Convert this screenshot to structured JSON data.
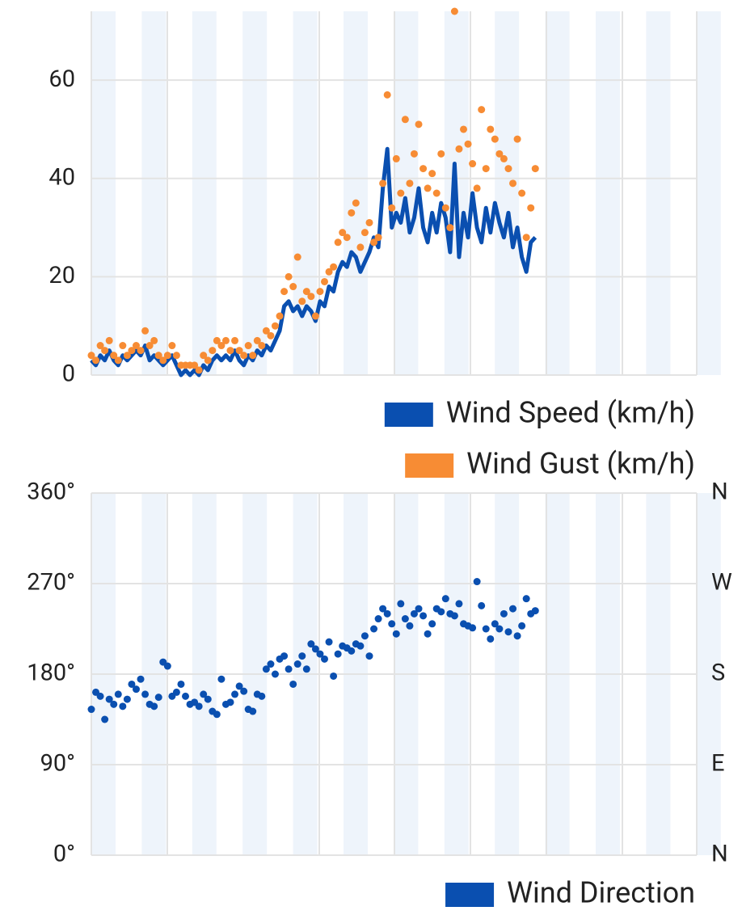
{
  "chart_data": [
    {
      "type": "line",
      "ylim": [
        0,
        74
      ],
      "yticks": [
        0,
        20,
        40,
        60
      ],
      "grid": true,
      "series": [
        {
          "name": "Wind Speed (km/h)",
          "type": "line",
          "color": "#0a4fb0",
          "values": [
            3,
            2,
            4,
            3,
            5,
            3,
            2,
            4,
            3,
            4,
            5,
            4,
            6,
            3,
            4,
            3,
            2,
            3,
            4,
            2,
            0,
            1,
            0,
            1,
            0,
            2,
            1,
            3,
            4,
            3,
            4,
            3,
            5,
            3,
            2,
            4,
            3,
            5,
            4,
            6,
            5,
            7,
            9,
            14,
            15,
            13,
            14,
            12,
            14,
            13,
            11,
            15,
            14,
            18,
            17,
            21,
            23,
            22,
            25,
            24,
            21,
            23,
            25,
            28,
            26,
            38,
            46,
            30,
            33,
            31,
            36,
            29,
            32,
            38,
            30,
            27,
            33,
            29,
            35,
            32,
            25,
            43,
            24,
            33,
            28,
            37,
            30,
            27,
            34,
            29,
            35,
            31,
            28,
            33,
            26,
            30,
            24,
            21,
            27,
            28
          ]
        },
        {
          "name": "Wind Gust (km/h)",
          "type": "scatter",
          "color": "#f78c34",
          "values": [
            4,
            3,
            6,
            5,
            7,
            4,
            3,
            6,
            4,
            5,
            6,
            5,
            9,
            6,
            7,
            4,
            3,
            4,
            6,
            4,
            2,
            2,
            2,
            2,
            1,
            4,
            3,
            5,
            7,
            6,
            7,
            5,
            7,
            5,
            4,
            6,
            4,
            7,
            6,
            9,
            8,
            10,
            12,
            17,
            20,
            18,
            24,
            15,
            17,
            16,
            12,
            17,
            19,
            21,
            22,
            27,
            29,
            28,
            33,
            35,
            26,
            29,
            31,
            27,
            28,
            39,
            57,
            34,
            44,
            37,
            52,
            39,
            45,
            51,
            42,
            38,
            41,
            37,
            45,
            34,
            30,
            74,
            46,
            50,
            47,
            43,
            38,
            54,
            42,
            50,
            48,
            45,
            44,
            42,
            39,
            48,
            37,
            28,
            34,
            42
          ]
        }
      ]
    },
    {
      "type": "scatter",
      "ylim": [
        0,
        360
      ],
      "yticks": [
        {
          "value": 0,
          "label": "0°"
        },
        {
          "value": 90,
          "label": "90°"
        },
        {
          "value": 180,
          "label": "180°"
        },
        {
          "value": 270,
          "label": "270°"
        },
        {
          "value": 360,
          "label": "360°"
        }
      ],
      "y2lim": [
        0,
        360
      ],
      "y2ticks": [
        {
          "value": 0,
          "label": "N"
        },
        {
          "value": 90,
          "label": "E"
        },
        {
          "value": 180,
          "label": "S"
        },
        {
          "value": 270,
          "label": "W"
        },
        {
          "value": 360,
          "label": "N"
        }
      ],
      "grid": true,
      "series": [
        {
          "name": "Wind Direction",
          "type": "scatter",
          "color": "#0a4fb0",
          "values": [
            145,
            162,
            158,
            135,
            155,
            150,
            160,
            148,
            155,
            170,
            165,
            175,
            160,
            150,
            148,
            157,
            192,
            188,
            158,
            162,
            170,
            158,
            150,
            152,
            148,
            160,
            155,
            143,
            140,
            175,
            150,
            152,
            160,
            168,
            163,
            145,
            143,
            160,
            158,
            185,
            190,
            180,
            195,
            198,
            185,
            170,
            190,
            198,
            185,
            210,
            205,
            200,
            195,
            212,
            178,
            200,
            208,
            206,
            203,
            210,
            208,
            218,
            198,
            225,
            235,
            245,
            240,
            230,
            220,
            250,
            235,
            228,
            240,
            245,
            238,
            220,
            230,
            245,
            242,
            255,
            240,
            238,
            250,
            230,
            228,
            226,
            272,
            248,
            225,
            215,
            230,
            225,
            240,
            222,
            245,
            218,
            228,
            255,
            240,
            243
          ]
        }
      ]
    }
  ]
}
